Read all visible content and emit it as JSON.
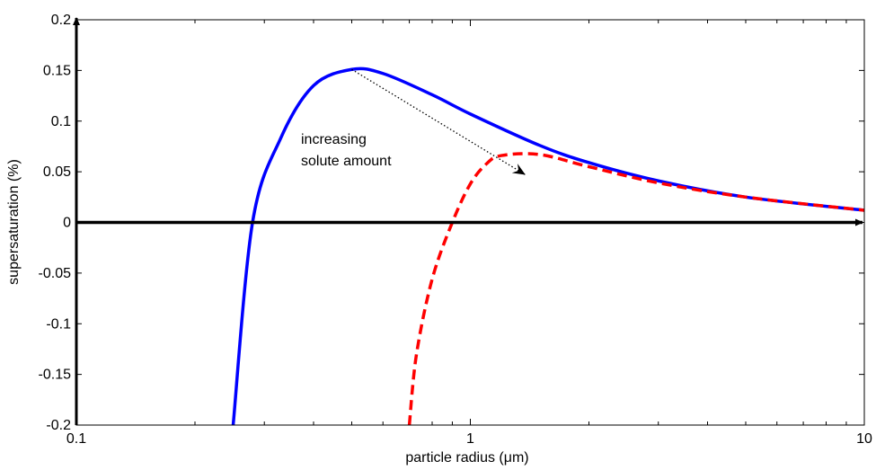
{
  "chart_data": {
    "type": "line",
    "xlabel": "particle radius (μm)",
    "ylabel": "supersaturation (%)",
    "xscale": "log",
    "xlim": [
      0.1,
      10
    ],
    "ylim": [
      -0.2,
      0.2
    ],
    "grid": false,
    "x_ticks": [
      0.1,
      1,
      10
    ],
    "x_tick_labels": [
      "0.1",
      "1",
      "10"
    ],
    "y_ticks": [
      0.2,
      0.15,
      0.1,
      0.05,
      0,
      -0.05,
      -0.1,
      -0.15,
      -0.2
    ],
    "y_tick_labels": [
      "0.2",
      "0.15",
      "0.1",
      "0.05",
      "0",
      "-0.05",
      "-0.1",
      "-0.15",
      "-0.2"
    ],
    "colors": {
      "series_1": "#0000ff",
      "series_2": "#ff0000",
      "zero_line": "#000000"
    },
    "series": [
      {
        "style": "solid",
        "x": [
          0.25,
          0.28,
          0.33,
          0.4,
          0.5,
          0.6,
          0.8,
          1.0,
          1.5,
          2.0,
          3.0,
          5.0,
          10.0
        ],
        "y": [
          -0.2,
          0.0,
          0.083,
          0.135,
          0.151,
          0.147,
          0.126,
          0.107,
          0.076,
          0.059,
          0.041,
          0.025,
          0.012
        ]
      },
      {
        "style": "dashed",
        "x": [
          0.7,
          0.73,
          0.8,
          0.9,
          1.0,
          1.1,
          1.2,
          1.5,
          2.0,
          3.0,
          5.0,
          10.0
        ],
        "y": [
          -0.2,
          -0.13,
          -0.056,
          0.0,
          0.038,
          0.058,
          0.066,
          0.067,
          0.055,
          0.039,
          0.025,
          0.012
        ]
      }
    ],
    "annotations": [
      {
        "lines": [
          "increasing",
          "solute amount"
        ],
        "arrow_from": [
          0.5,
          0.151
        ],
        "arrow_to": [
          1.38,
          0.047
        ]
      }
    ]
  }
}
